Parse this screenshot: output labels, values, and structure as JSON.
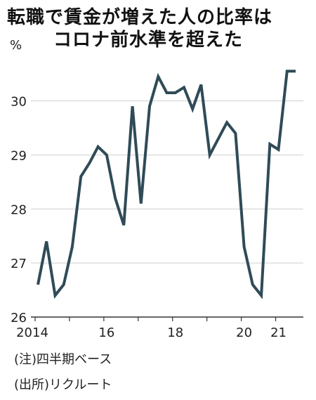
{
  "title_lines": [
    "転職で賃金が増えた人の比率は",
    "コロナ前水準を超えた"
  ],
  "notes": [
    "(注)四半期ベース",
    "(出所)リクルート"
  ],
  "chart_data": {
    "type": "line",
    "unit": "%",
    "title": "転職で賃金が増えた人の比率はコロナ前水準を超えた",
    "xlabel": "",
    "ylabel": "%",
    "ylim": [
      26,
      30.8
    ],
    "yticks": [
      26,
      27,
      28,
      29,
      30
    ],
    "xticks": [
      "2014",
      "16",
      "18",
      "20",
      "21"
    ],
    "grid": true,
    "x": [
      "2014Q1",
      "2014Q2",
      "2014Q3",
      "2014Q4",
      "2015Q1",
      "2015Q2",
      "2015Q3",
      "2015Q4",
      "2016Q1",
      "2016Q2",
      "2016Q3",
      "2016Q4",
      "2017Q1",
      "2017Q2",
      "2017Q3",
      "2017Q4",
      "2018Q1",
      "2018Q2",
      "2018Q3",
      "2018Q4",
      "2019Q1",
      "2019Q2",
      "2019Q3",
      "2019Q4",
      "2020Q1",
      "2020Q2",
      "2020Q3",
      "2020Q4",
      "2021Q1",
      "2021Q2",
      "2021Q3"
    ],
    "series": [
      {
        "name": "",
        "color": "#2f4b57",
        "values": [
          26.6,
          27.4,
          26.4,
          26.6,
          27.3,
          28.6,
          28.85,
          29.15,
          29.0,
          28.2,
          27.7,
          29.9,
          28.1,
          29.9,
          30.45,
          30.15,
          30.15,
          30.25,
          29.85,
          30.3,
          29.0,
          29.3,
          29.6,
          29.4,
          27.3,
          26.6,
          26.4,
          29.2,
          29.1,
          30.55,
          30.55
        ]
      }
    ]
  }
}
